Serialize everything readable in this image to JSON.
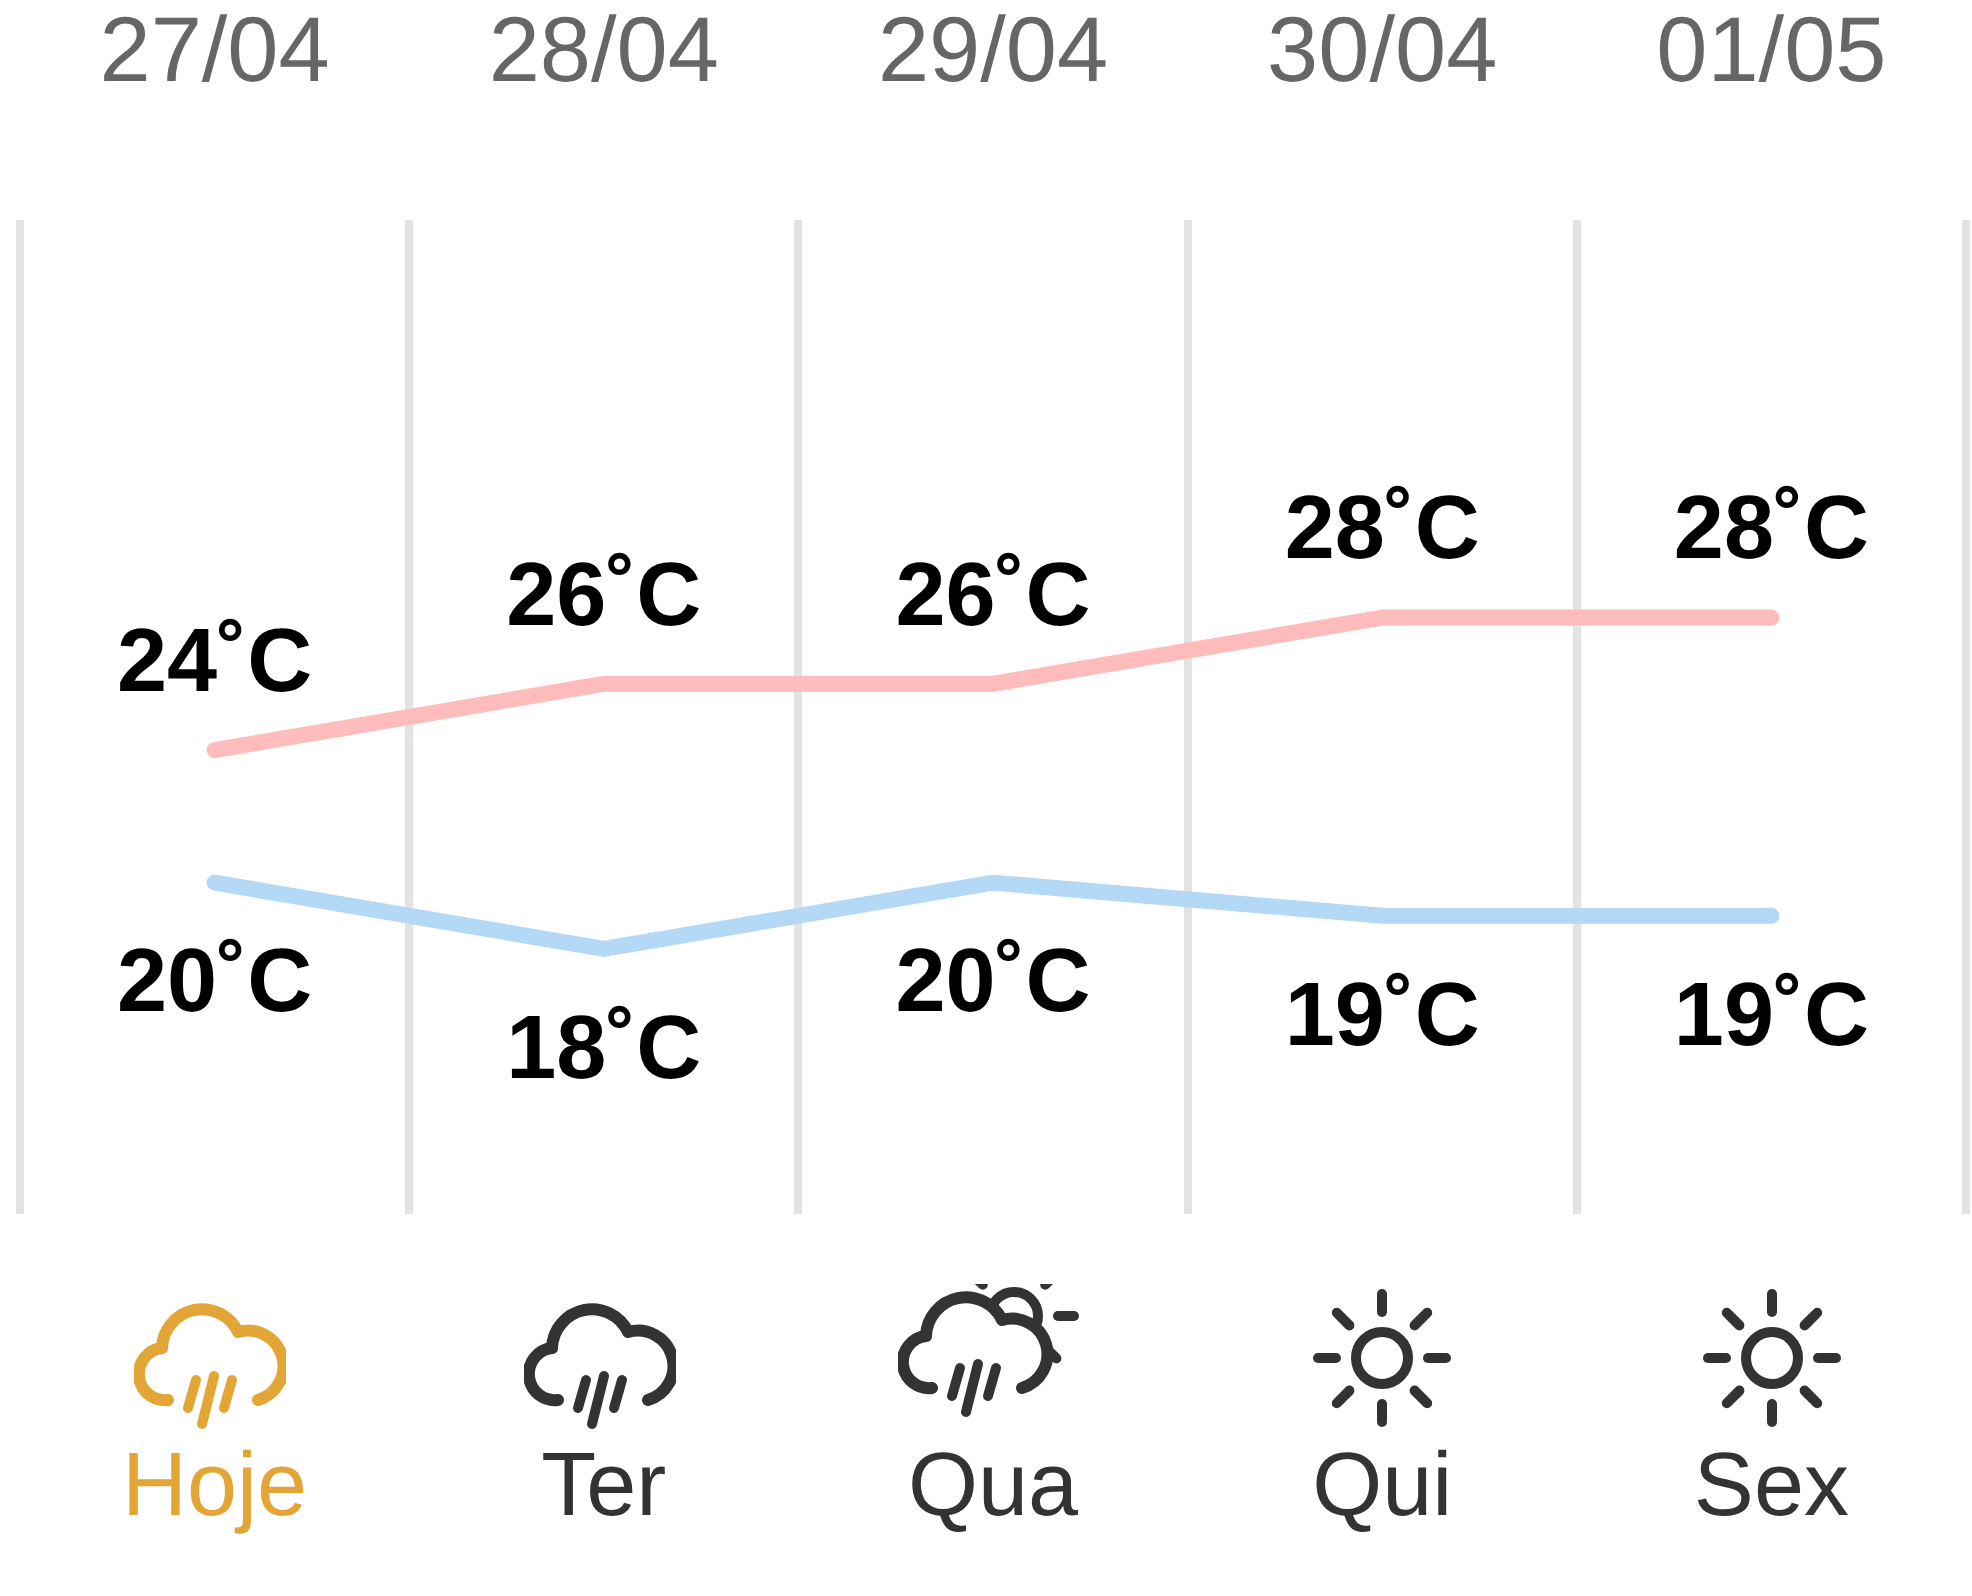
{
  "chart_data": {
    "type": "line",
    "categories": [
      "Hoje",
      "Ter",
      "Qua",
      "Qui",
      "Sex"
    ],
    "series": [
      {
        "color": "#ffbcbc",
        "values": [
          24,
          26,
          26,
          28,
          28
        ],
        "value_labels": [
          "24˚C",
          "26˚C",
          "26˚C",
          "28˚C",
          "28˚C"
        ]
      },
      {
        "color": "#b3d9f7",
        "values": [
          20,
          18,
          20,
          19,
          19
        ],
        "value_labels": [
          "20˚C",
          "18˚C",
          "20˚C",
          "19˚C",
          "19˚C"
        ]
      }
    ],
    "ylim": [
      10,
      40
    ],
    "grid": "x",
    "tick_labels": "x",
    "annotations": [
      "27/04",
      "28/04",
      "29/04",
      "30/04",
      "01/05"
    ]
  }
}
